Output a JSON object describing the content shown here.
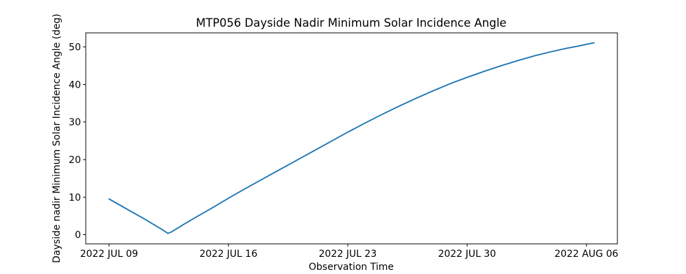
{
  "chart_data": {
    "type": "line",
    "title": "MTP056 Dayside Nadir Minimum Solar Incidence Angle",
    "xlabel": "Observation Time",
    "ylabel": "Dayside nadir Minimum Solar Incidence Angle (deg)",
    "grid": false,
    "line_color": "#1f77b4",
    "x_axis": {
      "unit": "days since 2022 JUL 09 00:00",
      "tick_days": [
        0,
        7,
        14,
        21,
        28
      ],
      "tick_labels": [
        "2022 JUL 09",
        "2022 JUL 16",
        "2022 JUL 23",
        "2022 JUL 30",
        "2022 AUG 06"
      ],
      "range_days": [
        -1.37,
        29.82
      ]
    },
    "y_axis": {
      "ticks": [
        0,
        10,
        20,
        30,
        40,
        50
      ],
      "range": [
        -2.45,
        53.75
      ]
    },
    "series": [
      {
        "name": "dayside-nadir-minimum-solar-incidence-angle",
        "points_day_deg": [
          [
            0,
            9.5
          ],
          [
            0.7,
            7.7
          ],
          [
            1.4,
            5.9
          ],
          [
            2.1,
            4.1
          ],
          [
            2.8,
            2.2
          ],
          [
            3.1,
            1.4
          ],
          [
            3.3,
            0.8
          ],
          [
            3.45,
            0.35
          ],
          [
            3.6,
            0.6
          ],
          [
            3.9,
            1.4
          ],
          [
            4.4,
            2.8
          ],
          [
            5,
            4.4
          ],
          [
            6,
            7.0
          ],
          [
            7,
            9.7
          ],
          [
            8,
            12.3
          ],
          [
            9,
            14.8
          ],
          [
            10,
            17.3
          ],
          [
            11,
            19.8
          ],
          [
            12,
            22.3
          ],
          [
            13,
            24.8
          ],
          [
            14,
            27.3
          ],
          [
            15,
            29.7
          ],
          [
            16,
            32.0
          ],
          [
            17,
            34.2
          ],
          [
            18,
            36.3
          ],
          [
            19,
            38.3
          ],
          [
            20,
            40.2
          ],
          [
            21,
            41.9
          ],
          [
            22,
            43.5
          ],
          [
            23,
            45.0
          ],
          [
            24,
            46.4
          ],
          [
            25,
            47.7
          ],
          [
            26,
            48.8
          ],
          [
            26.8,
            49.6
          ],
          [
            27.6,
            50.3
          ],
          [
            28,
            50.7
          ],
          [
            28.45,
            51.1
          ]
        ]
      }
    ]
  }
}
